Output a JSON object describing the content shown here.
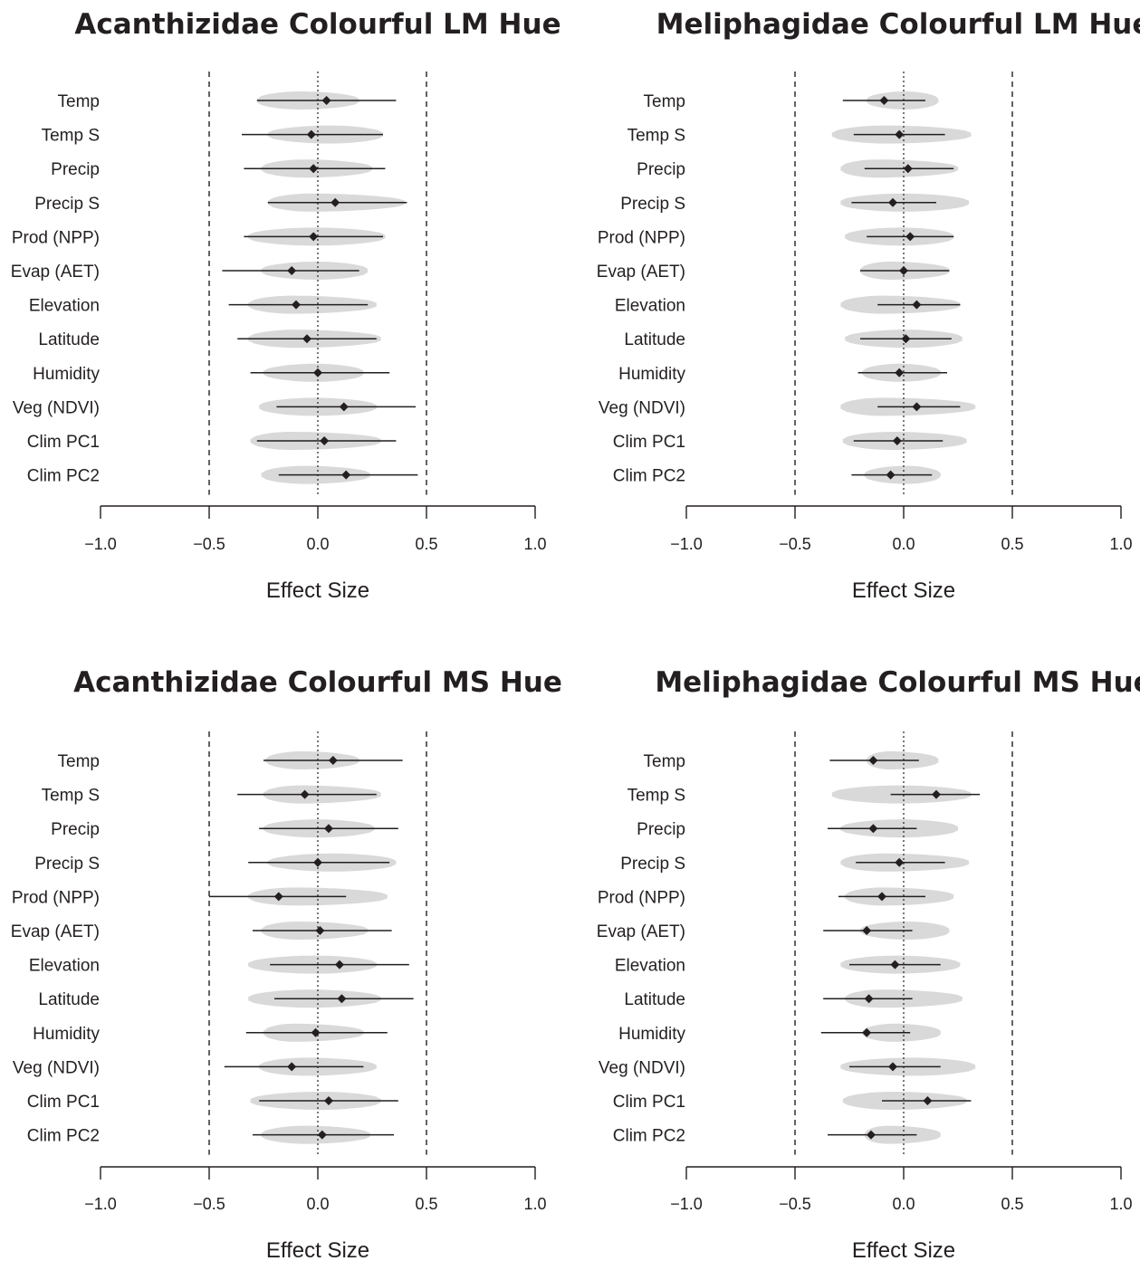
{
  "chart_data": [
    {
      "type": "forest-violin",
      "title": "Acanthizidae Colourful LM Hue",
      "xlabel": "Effect Size",
      "xlim": [
        -1.0,
        1.0
      ],
      "xticks": [
        -1.0,
        -0.5,
        0.0,
        0.5,
        1.0
      ],
      "xtick_labels": [
        "−1.0",
        "−0.5",
        "0.0",
        "0.5",
        "1.0"
      ],
      "reference_lines": {
        "dashed": [
          -0.5,
          0.5
        ],
        "dotted": [
          0.0
        ]
      },
      "rows": [
        {
          "label": "Temp",
          "estimate": 0.04,
          "ci": [
            -0.28,
            0.36
          ],
          "violin": [
            -0.28,
            0.19
          ]
        },
        {
          "label": "Temp S",
          "estimate": -0.03,
          "ci": [
            -0.35,
            0.3
          ],
          "violin": [
            -0.23,
            0.3
          ]
        },
        {
          "label": "Precip",
          "estimate": -0.02,
          "ci": [
            -0.34,
            0.31
          ],
          "violin": [
            -0.26,
            0.25
          ]
        },
        {
          "label": "Precip S",
          "estimate": 0.08,
          "ci": [
            -0.23,
            0.41
          ],
          "violin": [
            -0.23,
            0.4
          ]
        },
        {
          "label": "Prod (NPP)",
          "estimate": -0.02,
          "ci": [
            -0.34,
            0.3
          ],
          "violin": [
            -0.32,
            0.31
          ]
        },
        {
          "label": "Evap (AET)",
          "estimate": -0.12,
          "ci": [
            -0.44,
            0.19
          ],
          "violin": [
            -0.26,
            0.23
          ]
        },
        {
          "label": "Elevation",
          "estimate": -0.1,
          "ci": [
            -0.41,
            0.23
          ],
          "violin": [
            -0.32,
            0.27
          ]
        },
        {
          "label": "Latitude",
          "estimate": -0.05,
          "ci": [
            -0.37,
            0.27
          ],
          "violin": [
            -0.32,
            0.29
          ]
        },
        {
          "label": "Humidity",
          "estimate": 0.0,
          "ci": [
            -0.31,
            0.33
          ],
          "violin": [
            -0.25,
            0.21
          ]
        },
        {
          "label": "Veg (NDVI)",
          "estimate": 0.12,
          "ci": [
            -0.19,
            0.45
          ],
          "violin": [
            -0.27,
            0.27
          ]
        },
        {
          "label": "Clim PC1",
          "estimate": 0.03,
          "ci": [
            -0.28,
            0.36
          ],
          "violin": [
            -0.31,
            0.29
          ]
        },
        {
          "label": "Clim PC2",
          "estimate": 0.13,
          "ci": [
            -0.18,
            0.46
          ],
          "violin": [
            -0.26,
            0.24
          ]
        }
      ]
    },
    {
      "type": "forest-violin",
      "title": "Meliphagidae Colourful LM Hue",
      "xlabel": "Effect Size",
      "xlim": [
        -1.0,
        1.0
      ],
      "xticks": [
        -1.0,
        -0.5,
        0.0,
        0.5,
        1.0
      ],
      "xtick_labels": [
        "−1.0",
        "−0.5",
        "0.0",
        "0.5",
        "1.0"
      ],
      "reference_lines": {
        "dashed": [
          -0.5,
          0.5
        ],
        "dotted": [
          0.0
        ]
      },
      "rows": [
        {
          "label": "Temp",
          "estimate": -0.09,
          "ci": [
            -0.28,
            0.1
          ],
          "violin": [
            -0.17,
            0.16
          ]
        },
        {
          "label": "Temp S",
          "estimate": -0.02,
          "ci": [
            -0.23,
            0.19
          ],
          "violin": [
            -0.33,
            0.31
          ]
        },
        {
          "label": "Precip",
          "estimate": 0.02,
          "ci": [
            -0.18,
            0.23
          ],
          "violin": [
            -0.29,
            0.25
          ]
        },
        {
          "label": "Precip S",
          "estimate": -0.05,
          "ci": [
            -0.24,
            0.15
          ],
          "violin": [
            -0.29,
            0.3
          ]
        },
        {
          "label": "Prod (NPP)",
          "estimate": 0.03,
          "ci": [
            -0.17,
            0.23
          ],
          "violin": [
            -0.27,
            0.23
          ]
        },
        {
          "label": "Evap (AET)",
          "estimate": 0.0,
          "ci": [
            -0.2,
            0.21
          ],
          "violin": [
            -0.2,
            0.21
          ]
        },
        {
          "label": "Elevation",
          "estimate": 0.06,
          "ci": [
            -0.12,
            0.26
          ],
          "violin": [
            -0.29,
            0.26
          ]
        },
        {
          "label": "Latitude",
          "estimate": 0.01,
          "ci": [
            -0.2,
            0.22
          ],
          "violin": [
            -0.27,
            0.27
          ]
        },
        {
          "label": "Humidity",
          "estimate": -0.02,
          "ci": [
            -0.21,
            0.2
          ],
          "violin": [
            -0.19,
            0.17
          ]
        },
        {
          "label": "Veg (NDVI)",
          "estimate": 0.06,
          "ci": [
            -0.12,
            0.26
          ],
          "violin": [
            -0.29,
            0.33
          ]
        },
        {
          "label": "Clim PC1",
          "estimate": -0.03,
          "ci": [
            -0.23,
            0.18
          ],
          "violin": [
            -0.28,
            0.29
          ]
        },
        {
          "label": "Clim PC2",
          "estimate": -0.06,
          "ci": [
            -0.24,
            0.13
          ],
          "violin": [
            -0.18,
            0.17
          ]
        }
      ]
    },
    {
      "type": "forest-violin",
      "title": "Acanthizidae Colourful MS Hue",
      "xlabel": "Effect Size",
      "xlim": [
        -1.0,
        1.0
      ],
      "xticks": [
        -1.0,
        -0.5,
        0.0,
        0.5,
        1.0
      ],
      "xtick_labels": [
        "−1.0",
        "−0.5",
        "0.0",
        "0.5",
        "1.0"
      ],
      "reference_lines": {
        "dashed": [
          -0.5,
          0.5
        ],
        "dotted": [
          0.0
        ]
      },
      "rows": [
        {
          "label": "Temp",
          "estimate": 0.07,
          "ci": [
            -0.25,
            0.39
          ],
          "violin": [
            -0.24,
            0.19
          ]
        },
        {
          "label": "Temp S",
          "estimate": -0.06,
          "ci": [
            -0.37,
            0.27
          ],
          "violin": [
            -0.25,
            0.29
          ]
        },
        {
          "label": "Precip",
          "estimate": 0.05,
          "ci": [
            -0.27,
            0.37
          ],
          "violin": [
            -0.25,
            0.26
          ]
        },
        {
          "label": "Precip S",
          "estimate": 0.0,
          "ci": [
            -0.32,
            0.33
          ],
          "violin": [
            -0.23,
            0.36
          ]
        },
        {
          "label": "Prod (NPP)",
          "estimate": -0.18,
          "ci": [
            -0.5,
            0.13
          ],
          "violin": [
            -0.32,
            0.32
          ]
        },
        {
          "label": "Evap (AET)",
          "estimate": 0.01,
          "ci": [
            -0.3,
            0.34
          ],
          "violin": [
            -0.26,
            0.23
          ]
        },
        {
          "label": "Elevation",
          "estimate": 0.1,
          "ci": [
            -0.22,
            0.42
          ],
          "violin": [
            -0.32,
            0.27
          ]
        },
        {
          "label": "Latitude",
          "estimate": 0.11,
          "ci": [
            -0.2,
            0.44
          ],
          "violin": [
            -0.32,
            0.29
          ]
        },
        {
          "label": "Humidity",
          "estimate": -0.01,
          "ci": [
            -0.33,
            0.32
          ],
          "violin": [
            -0.25,
            0.21
          ]
        },
        {
          "label": "Veg (NDVI)",
          "estimate": -0.12,
          "ci": [
            -0.43,
            0.21
          ],
          "violin": [
            -0.27,
            0.27
          ]
        },
        {
          "label": "Clim PC1",
          "estimate": 0.05,
          "ci": [
            -0.27,
            0.37
          ],
          "violin": [
            -0.31,
            0.29
          ]
        },
        {
          "label": "Clim PC2",
          "estimate": 0.02,
          "ci": [
            -0.3,
            0.35
          ],
          "violin": [
            -0.26,
            0.24
          ]
        }
      ]
    },
    {
      "type": "forest-violin",
      "title": "Meliphagidae Colourful MS Hue",
      "xlabel": "Effect Size",
      "xlim": [
        -1.0,
        1.0
      ],
      "xticks": [
        -1.0,
        -0.5,
        0.0,
        0.5,
        1.0
      ],
      "xtick_labels": [
        "−1.0",
        "−0.5",
        "0.0",
        "0.5",
        "1.0"
      ],
      "reference_lines": {
        "dashed": [
          -0.5,
          0.5
        ],
        "dotted": [
          0.0
        ]
      },
      "rows": [
        {
          "label": "Temp",
          "estimate": -0.14,
          "ci": [
            -0.34,
            0.07
          ],
          "violin": [
            -0.17,
            0.16
          ]
        },
        {
          "label": "Temp S",
          "estimate": 0.15,
          "ci": [
            -0.06,
            0.35
          ],
          "violin": [
            -0.33,
            0.31
          ]
        },
        {
          "label": "Precip",
          "estimate": -0.14,
          "ci": [
            -0.35,
            0.06
          ],
          "violin": [
            -0.29,
            0.25
          ]
        },
        {
          "label": "Precip S",
          "estimate": -0.02,
          "ci": [
            -0.22,
            0.19
          ],
          "violin": [
            -0.29,
            0.3
          ]
        },
        {
          "label": "Prod (NPP)",
          "estimate": -0.1,
          "ci": [
            -0.3,
            0.1
          ],
          "violin": [
            -0.27,
            0.23
          ]
        },
        {
          "label": "Evap (AET)",
          "estimate": -0.17,
          "ci": [
            -0.37,
            0.04
          ],
          "violin": [
            -0.2,
            0.21
          ]
        },
        {
          "label": "Elevation",
          "estimate": -0.04,
          "ci": [
            -0.25,
            0.17
          ],
          "violin": [
            -0.29,
            0.26
          ]
        },
        {
          "label": "Latitude",
          "estimate": -0.16,
          "ci": [
            -0.37,
            0.04
          ],
          "violin": [
            -0.27,
            0.27
          ]
        },
        {
          "label": "Humidity",
          "estimate": -0.17,
          "ci": [
            -0.38,
            0.03
          ],
          "violin": [
            -0.19,
            0.17
          ]
        },
        {
          "label": "Veg (NDVI)",
          "estimate": -0.05,
          "ci": [
            -0.25,
            0.17
          ],
          "violin": [
            -0.29,
            0.33
          ]
        },
        {
          "label": "Clim PC1",
          "estimate": 0.11,
          "ci": [
            -0.1,
            0.31
          ],
          "violin": [
            -0.28,
            0.29
          ]
        },
        {
          "label": "Clim PC2",
          "estimate": -0.15,
          "ci": [
            -0.35,
            0.06
          ],
          "violin": [
            -0.18,
            0.17
          ]
        }
      ]
    }
  ],
  "colors": {
    "violin_fill": "#d9d9d9",
    "point": "#231f20",
    "line": "#231f20",
    "text": "#231f20"
  }
}
